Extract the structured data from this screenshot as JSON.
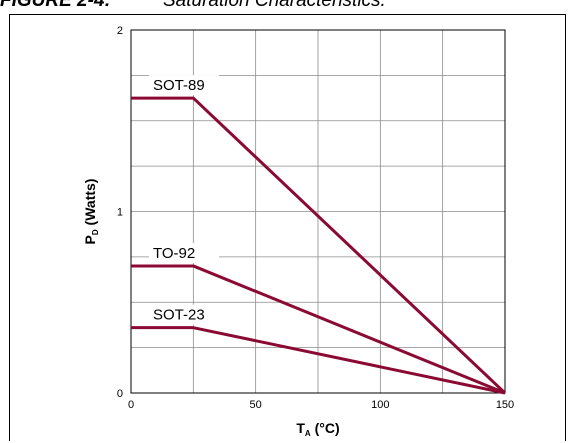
{
  "caption": {
    "figure_number": "FIGURE 2-4:",
    "title": "Saturation Characteristics."
  },
  "chart_data": {
    "type": "line",
    "xlabel": {
      "main": "T",
      "sub": "A",
      "rest": " (°C)"
    },
    "ylabel": {
      "main": "P",
      "sub": "D",
      "rest": " (Watts)"
    },
    "xlim": [
      0,
      150
    ],
    "ylim": [
      0,
      2
    ],
    "x_ticks": [
      0,
      50,
      100,
      150
    ],
    "y_ticks": [
      0,
      1,
      2
    ],
    "x_grid_step": 25,
    "y_grid_step": 0.25,
    "grid": true,
    "line_color": "#8b0a33",
    "series": [
      {
        "name": "SOT-89",
        "x": [
          0,
          25,
          150
        ],
        "y": [
          1.625,
          1.625,
          0
        ]
      },
      {
        "name": "TO-92",
        "x": [
          0,
          25,
          150
        ],
        "y": [
          0.7,
          0.7,
          0
        ]
      },
      {
        "name": "SOT-23",
        "x": [
          0,
          25,
          150
        ],
        "y": [
          0.36,
          0.36,
          0
        ]
      }
    ]
  }
}
